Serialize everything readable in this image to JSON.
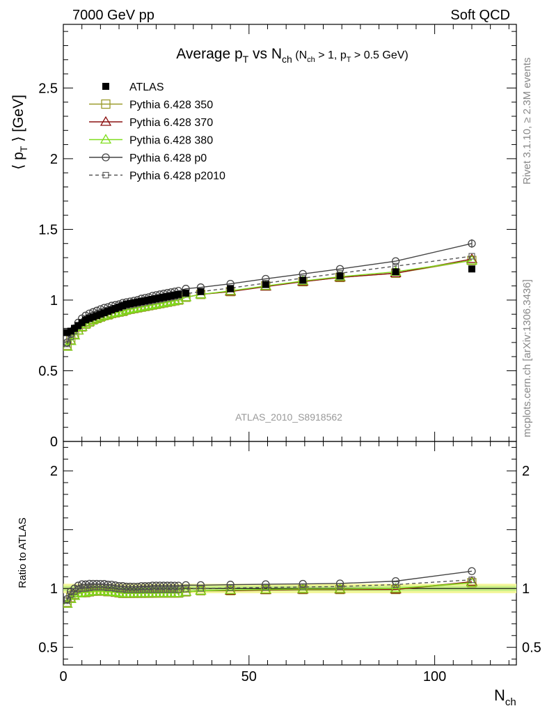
{
  "header": {
    "left": "7000 GeV pp",
    "right": "Soft QCD"
  },
  "side": {
    "rivet": "Rivet 3.1.10, ≥ 2.3M events",
    "mcplots": "mcplots.cern.ch [arXiv:1306.3436]"
  },
  "analysis_id": "ATLAS_2010_S8918562",
  "chart_data": {
    "type": "line",
    "title": {
      "main": "Average p",
      "main_sub": "T",
      "mid": " vs N",
      "mid_sub": "ch",
      "paren_open": " (N",
      "paren_sub1": "ch",
      "paren_mid": " > 1, p",
      "paren_sub2": "T",
      "paren_close": " > 0.5 GeV)"
    },
    "ylabel": {
      "pre": "⟨ p",
      "sub": "T",
      "post": " ⟩  [GeV]"
    },
    "xlabel": {
      "main": "N",
      "sub": "ch"
    },
    "ratio_ylabel": "Ratio to ATLAS",
    "xlim": [
      0,
      122
    ],
    "ylim": [
      0,
      2.95
    ],
    "ratio_ylim": [
      0.35,
      2.25
    ],
    "x_ticks": [
      "0",
      "50",
      "100"
    ],
    "y_ticks": [
      "0",
      "0.5",
      "1",
      "1.5",
      "2",
      "2.5"
    ],
    "ratio_y_ticks": [
      "0.5",
      "1",
      "2"
    ],
    "legend_position": "top-left",
    "x": [
      1,
      2,
      3,
      4,
      5,
      6,
      7,
      8,
      9,
      10,
      11,
      12,
      13,
      14,
      15,
      16,
      17,
      18,
      19,
      20,
      21,
      22,
      23,
      24,
      25,
      26,
      27,
      28,
      29,
      30,
      31,
      33,
      37,
      45,
      54.5,
      64.5,
      74.5,
      89.5,
      110
    ],
    "series": [
      {
        "name": "ATLAS",
        "marker": "square-filled",
        "color": "#000000",
        "values": [
          0.77,
          0.78,
          0.8,
          0.82,
          0.84,
          0.86,
          0.87,
          0.88,
          0.89,
          0.9,
          0.91,
          0.92,
          0.93,
          0.94,
          0.95,
          0.96,
          0.97,
          0.975,
          0.98,
          0.985,
          0.99,
          0.995,
          1.0,
          1.005,
          1.01,
          1.015,
          1.02,
          1.025,
          1.03,
          1.035,
          1.04,
          1.05,
          1.06,
          1.08,
          1.11,
          1.14,
          1.17,
          1.2,
          1.22
        ],
        "band_width": 0.04
      },
      {
        "name": "Pythia 6.428 350",
        "marker": "square-open",
        "color": "#9a9a2a",
        "dashed": false,
        "values": [
          0.68,
          0.72,
          0.76,
          0.79,
          0.81,
          0.83,
          0.845,
          0.86,
          0.87,
          0.88,
          0.89,
          0.895,
          0.905,
          0.91,
          0.915,
          0.92,
          0.93,
          0.935,
          0.94,
          0.945,
          0.95,
          0.955,
          0.96,
          0.965,
          0.97,
          0.975,
          0.98,
          0.985,
          0.99,
          0.995,
          1.0,
          1.02,
          1.04,
          1.06,
          1.1,
          1.13,
          1.16,
          1.19,
          1.28
        ]
      },
      {
        "name": "Pythia 6.428 370",
        "marker": "triangle-open",
        "color": "#8b1010",
        "dashed": false,
        "values": [
          0.67,
          0.71,
          0.75,
          0.785,
          0.81,
          0.83,
          0.845,
          0.86,
          0.87,
          0.88,
          0.89,
          0.895,
          0.905,
          0.91,
          0.915,
          0.92,
          0.93,
          0.935,
          0.94,
          0.945,
          0.95,
          0.955,
          0.96,
          0.965,
          0.97,
          0.975,
          0.98,
          0.985,
          0.99,
          0.995,
          1.0,
          1.02,
          1.04,
          1.06,
          1.095,
          1.13,
          1.16,
          1.19,
          1.29
        ]
      },
      {
        "name": "Pythia 6.428 380",
        "marker": "triangle-open",
        "color": "#7fdd1c",
        "dashed": false,
        "values": [
          0.67,
          0.71,
          0.75,
          0.785,
          0.81,
          0.83,
          0.845,
          0.86,
          0.87,
          0.88,
          0.89,
          0.895,
          0.905,
          0.91,
          0.915,
          0.92,
          0.93,
          0.935,
          0.94,
          0.945,
          0.95,
          0.955,
          0.96,
          0.965,
          0.97,
          0.975,
          0.98,
          0.985,
          0.99,
          0.995,
          1.0,
          1.02,
          1.04,
          1.065,
          1.1,
          1.135,
          1.165,
          1.2,
          1.28
        ]
      },
      {
        "name": "Pythia 6.428 p0",
        "marker": "circle-open",
        "color": "#444444",
        "dashed": false,
        "values": [
          0.7,
          0.76,
          0.8,
          0.84,
          0.87,
          0.89,
          0.905,
          0.915,
          0.925,
          0.935,
          0.945,
          0.95,
          0.96,
          0.965,
          0.97,
          0.98,
          0.985,
          0.99,
          0.995,
          1.0,
          1.01,
          1.015,
          1.02,
          1.03,
          1.035,
          1.04,
          1.045,
          1.05,
          1.055,
          1.06,
          1.065,
          1.08,
          1.09,
          1.115,
          1.15,
          1.185,
          1.22,
          1.275,
          1.4
        ]
      },
      {
        "name": "Pythia 6.428 p2010",
        "marker": "square-open-small",
        "color": "#555555",
        "dashed": true,
        "values": [
          0.69,
          0.74,
          0.78,
          0.815,
          0.84,
          0.86,
          0.875,
          0.89,
          0.9,
          0.91,
          0.92,
          0.925,
          0.935,
          0.94,
          0.945,
          0.955,
          0.96,
          0.965,
          0.97,
          0.975,
          0.98,
          0.985,
          0.99,
          0.995,
          1.0,
          1.005,
          1.01,
          1.015,
          1.02,
          1.025,
          1.03,
          1.045,
          1.06,
          1.085,
          1.12,
          1.155,
          1.19,
          1.24,
          1.31
        ]
      }
    ]
  }
}
